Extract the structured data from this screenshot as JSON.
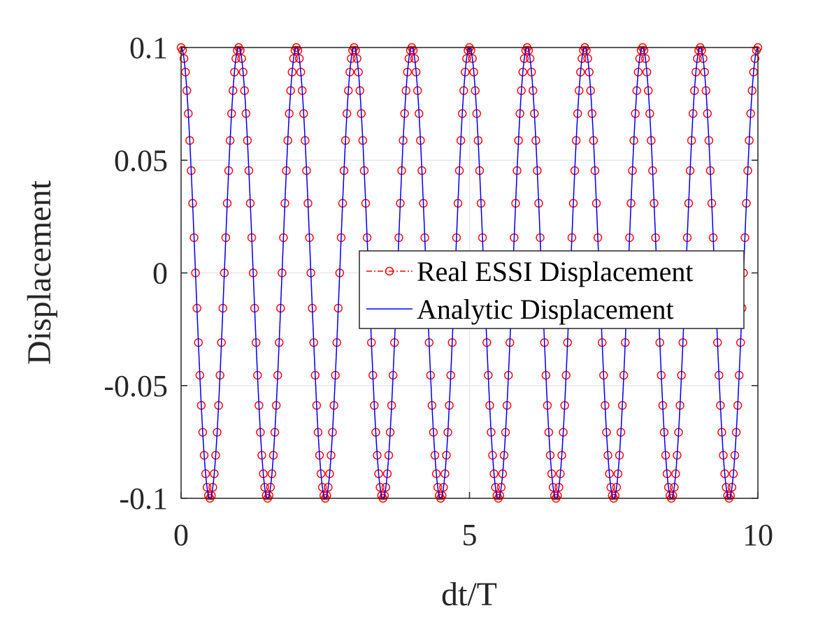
{
  "chart_data": {
    "type": "line",
    "title": "",
    "xlabel": "dt/T",
    "ylabel": "Displacement",
    "xlim": [
      0,
      10
    ],
    "ylim": [
      -0.1,
      0.1
    ],
    "x_ticks": [
      0,
      5,
      10
    ],
    "x_tick_labels": [
      "0",
      "5",
      "10"
    ],
    "y_ticks": [
      -0.1,
      -0.05,
      0,
      0.05,
      0.1
    ],
    "y_tick_labels": [
      "-0.1",
      "-0.05",
      "0",
      "0.05",
      "0.1"
    ],
    "grid": true,
    "legend_position": "center-right",
    "series": [
      {
        "name": "Real ESSI Displacement",
        "style": "dash-dot line with circle markers",
        "color": "#ff0000",
        "amplitude": 0.1,
        "period": 1,
        "x_start": 0,
        "x_end": 10,
        "x_step": 0.025
      },
      {
        "name": "Analytic Displacement",
        "style": "solid line",
        "color": "#0000ff",
        "amplitude": 0.1,
        "period": 1,
        "x_start": 0,
        "x_end": 10
      }
    ]
  }
}
